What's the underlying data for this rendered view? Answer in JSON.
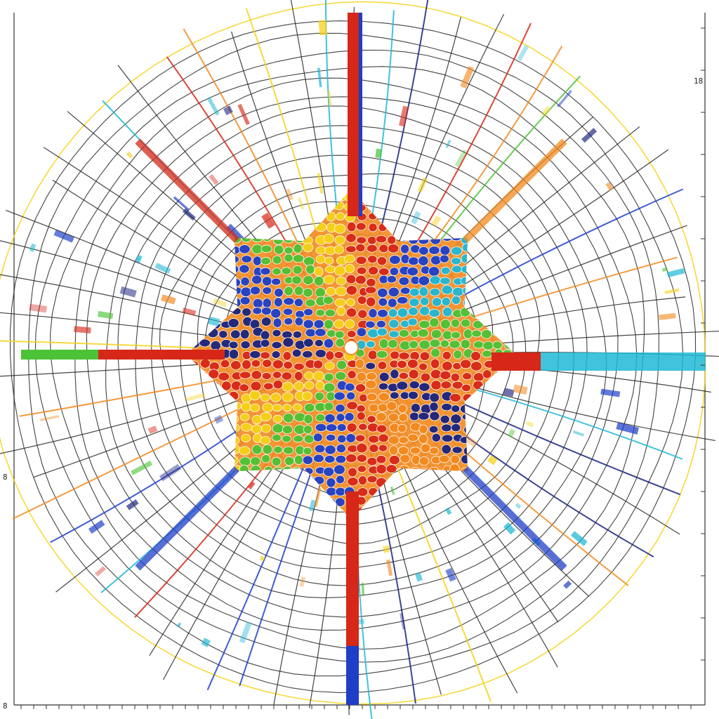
{
  "colors": {
    "background": "#ffffff",
    "frame": "#333333",
    "grid": "#222222",
    "red": "#d62718",
    "orange": "#f28a1e",
    "yellow": "#f5d21a",
    "green": "#4cc236",
    "cyan": "#1fb8d6",
    "blue": "#1f3fc8",
    "navy": "#1a237e"
  },
  "labels": {
    "left_mid": "8",
    "right_top": "18",
    "bottom_left": "8"
  }
}
